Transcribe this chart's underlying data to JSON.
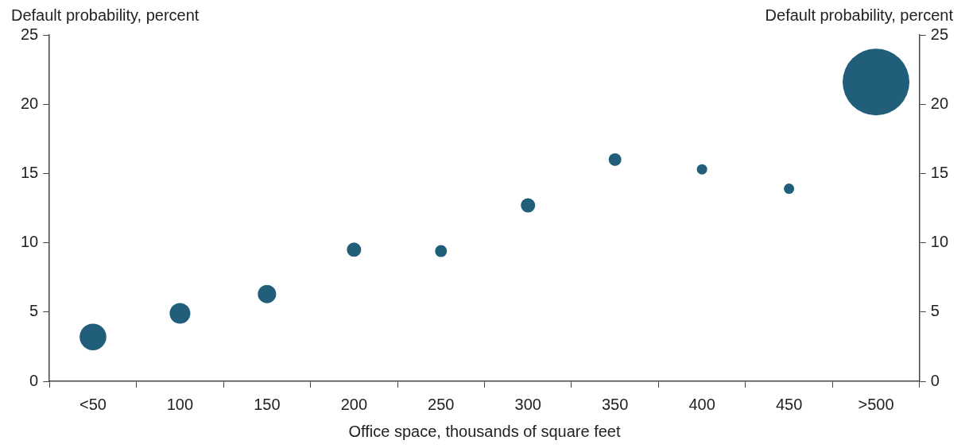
{
  "chart_data": {
    "type": "bubble",
    "xlabel": "Office space, thousands of square feet",
    "ylabel": "Default probability, percent",
    "y2label": "Default probability, percent",
    "categories": [
      "<50",
      "100",
      "150",
      "200",
      "250",
      "300",
      "350",
      "400",
      "450",
      ">500"
    ],
    "series": [
      {
        "color": "#215e7a",
        "values": [
          3.2,
          4.9,
          6.3,
          9.5,
          9.4,
          12.7,
          16.0,
          15.3,
          13.9,
          21.6
        ],
        "sizes": [
          0.16,
          0.096,
          0.075,
          0.046,
          0.032,
          0.046,
          0.036,
          0.024,
          0.024,
          1
        ]
      }
    ],
    "ylim": [
      0,
      25
    ],
    "yticks": [
      0,
      5,
      10,
      15,
      20,
      25
    ],
    "y2lim": [
      0,
      25
    ],
    "y2ticks": [
      0,
      5,
      10,
      15,
      20,
      25
    ],
    "grid": false,
    "legend": false
  }
}
